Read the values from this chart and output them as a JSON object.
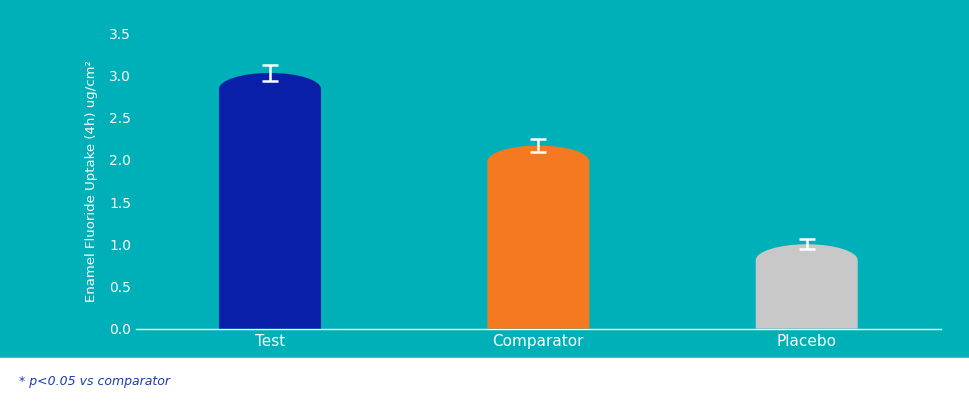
{
  "categories": [
    "Test",
    "Comparator",
    "Placebo"
  ],
  "values": [
    3.03,
    2.17,
    1.0
  ],
  "errors": [
    0.09,
    0.08,
    0.06
  ],
  "bar_colors": [
    "#0a1fa8",
    "#f47920",
    "#c8c8c8"
  ],
  "background_color": "#00b0b9",
  "ylabel": "Enamel Fluoride Uptake (4h) ug/cm²",
  "ylabel_color": "#ffffff",
  "tick_color": "#ffffff",
  "axis_line_color": "#ffffff",
  "ylim": [
    0,
    3.5
  ],
  "yticks": [
    0.0,
    0.5,
    1.0,
    1.5,
    2.0,
    2.5,
    3.0,
    3.5
  ],
  "error_color": "#ffffff",
  "footnote": "* p<0.05 vs comparator",
  "footnote_color": "#1a3caa",
  "footnote_fontsize": 9,
  "bar_width": 0.38,
  "x_positions": [
    0,
    1,
    2
  ]
}
